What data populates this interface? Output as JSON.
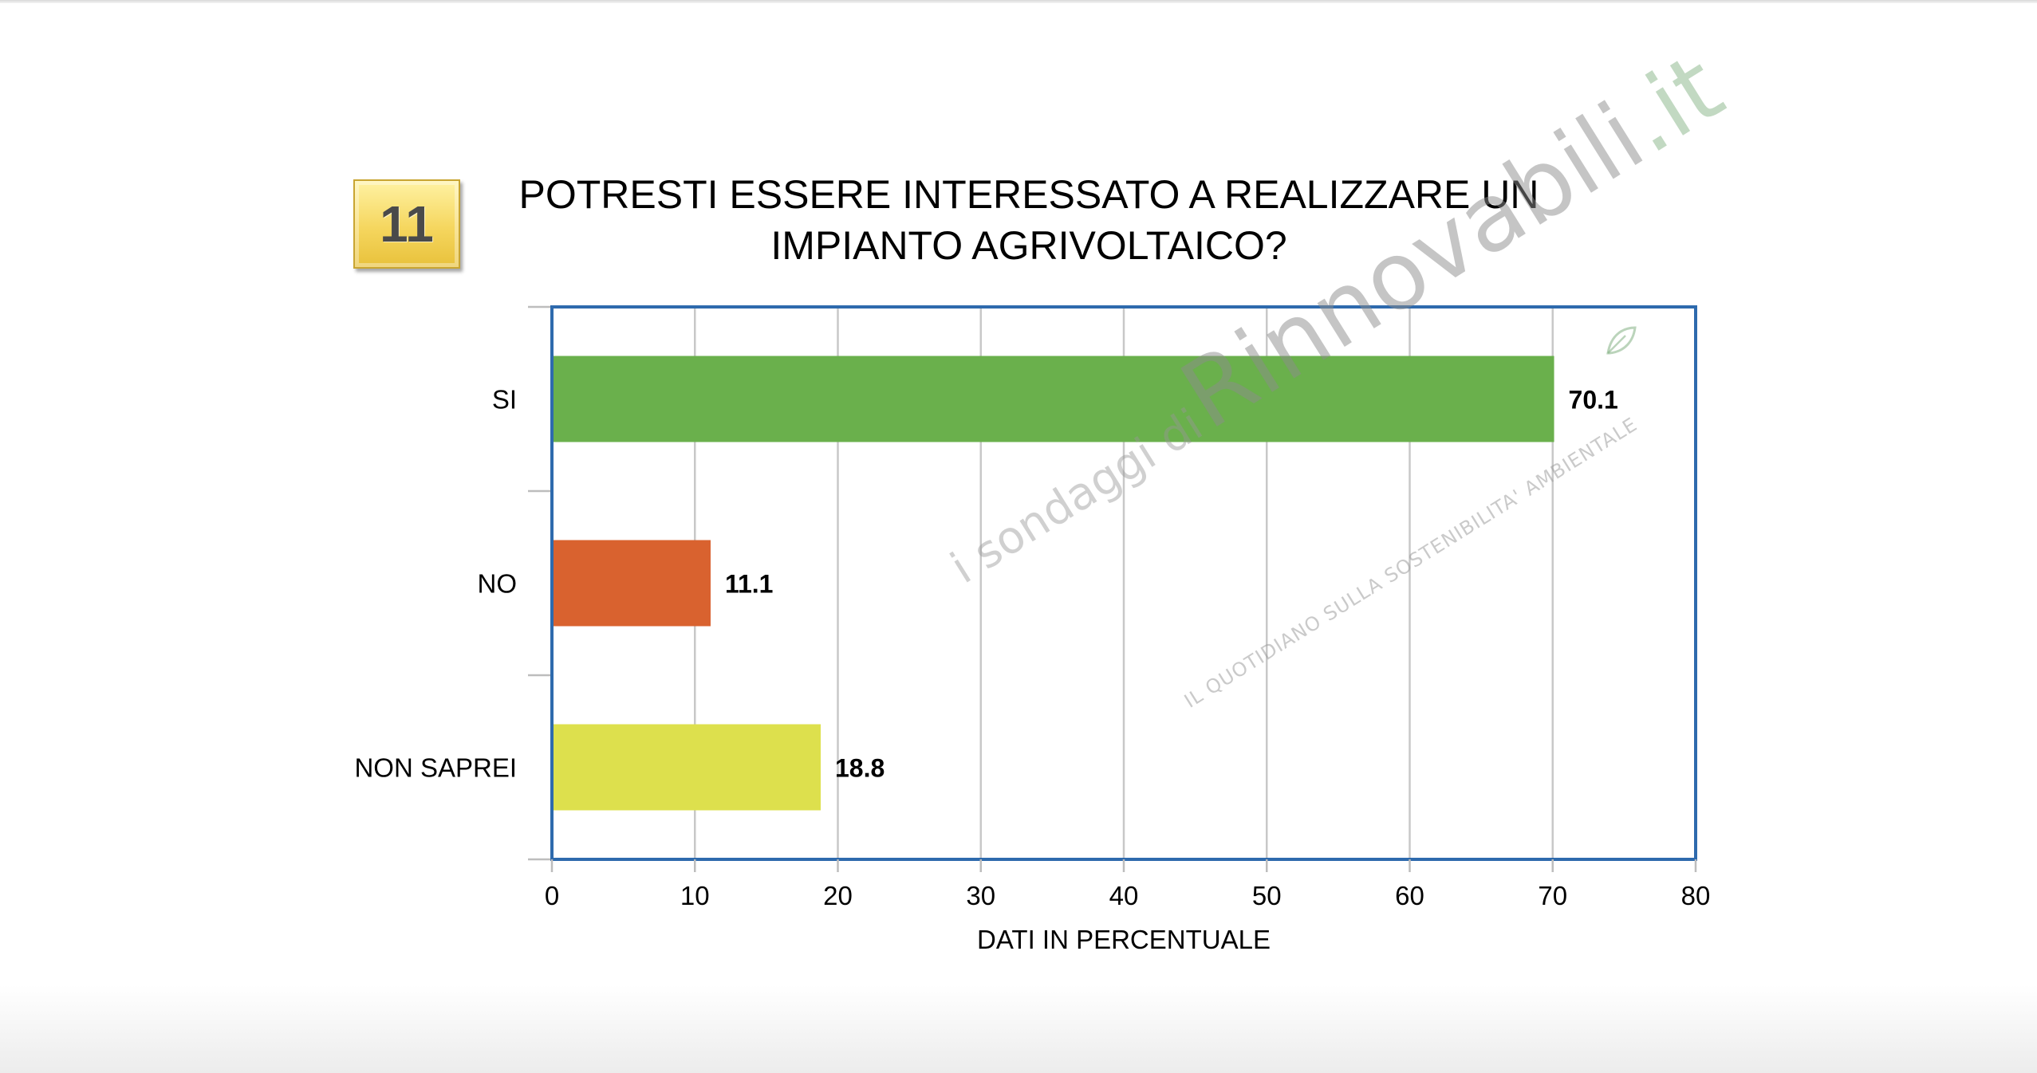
{
  "badge": {
    "number": "11",
    "color": "#f5d65e"
  },
  "title": {
    "line1": "POTRESTI ESSERE INTERESSATO A REALIZZARE UN",
    "line2": "IMPIANTO AGRIVOLTAICO?"
  },
  "watermark": {
    "prefix": "i sondaggi di",
    "brand": "Rinnovabili",
    "tld": ".it",
    "tagline": "IL QUOTIDIANO SULLA SOSTENIBILITA' AMBIENTALE"
  },
  "chart_data": {
    "type": "bar",
    "orientation": "horizontal",
    "categories": [
      "SI",
      "NO",
      "NON SAPREI"
    ],
    "values": [
      70.1,
      11.1,
      18.8
    ],
    "value_labels": [
      "70.1",
      "11.1",
      "18.8"
    ],
    "colors": [
      "#6ab04c",
      "#d9622f",
      "#dde04d"
    ],
    "xlabel": "DATI IN PERCENTUALE",
    "ylabel": "",
    "xlim": [
      0,
      80
    ],
    "xticks": [
      0,
      10,
      20,
      30,
      40,
      50,
      60,
      70,
      80
    ],
    "grid": "vertical",
    "legend": "none",
    "frame_color": "#2e6aad"
  }
}
